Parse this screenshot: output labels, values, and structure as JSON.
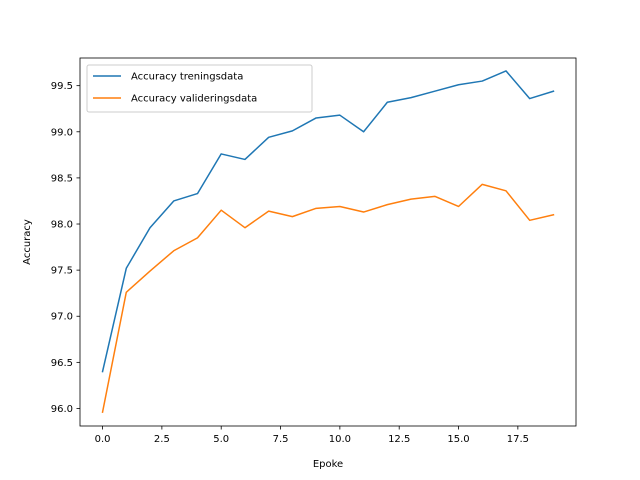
{
  "chart_data": {
    "type": "line",
    "title": "",
    "xlabel": "Epoke",
    "ylabel": "Accuracy",
    "xlim": [
      -0.95,
      19.95
    ],
    "ylim": [
      95.81,
      99.8
    ],
    "xticks": [
      0.0,
      2.5,
      5.0,
      7.5,
      10.0,
      12.5,
      15.0,
      17.5
    ],
    "xtick_labels": [
      "0.0",
      "2.5",
      "5.0",
      "7.5",
      "10.0",
      "12.5",
      "15.0",
      "17.5"
    ],
    "yticks": [
      96.0,
      96.5,
      97.0,
      97.5,
      98.0,
      98.5,
      99.0,
      99.5
    ],
    "ytick_labels": [
      "96.0",
      "96.5",
      "97.0",
      "97.5",
      "98.0",
      "98.5",
      "99.0",
      "99.5"
    ],
    "grid": false,
    "legend_position": "top-left",
    "x": [
      0,
      1,
      2,
      3,
      4,
      5,
      6,
      7,
      8,
      9,
      10,
      11,
      12,
      13,
      14,
      15,
      16,
      17,
      18,
      19
    ],
    "series": [
      {
        "name": "Accuracy treningsdata",
        "color": "#1f77b4",
        "values": [
          96.4,
          97.52,
          97.96,
          98.25,
          98.33,
          98.76,
          98.7,
          98.94,
          99.01,
          99.15,
          99.18,
          99.0,
          99.32,
          99.37,
          99.44,
          99.51,
          99.55,
          99.66,
          99.36,
          99.44
        ]
      },
      {
        "name": "Accuracy valideringsdata",
        "color": "#ff7f0e",
        "values": [
          95.96,
          97.26,
          97.49,
          97.71,
          97.85,
          98.15,
          97.96,
          98.14,
          98.08,
          98.17,
          98.19,
          98.13,
          98.21,
          98.27,
          98.3,
          98.19,
          98.43,
          98.36,
          98.04,
          98.1
        ]
      }
    ]
  }
}
